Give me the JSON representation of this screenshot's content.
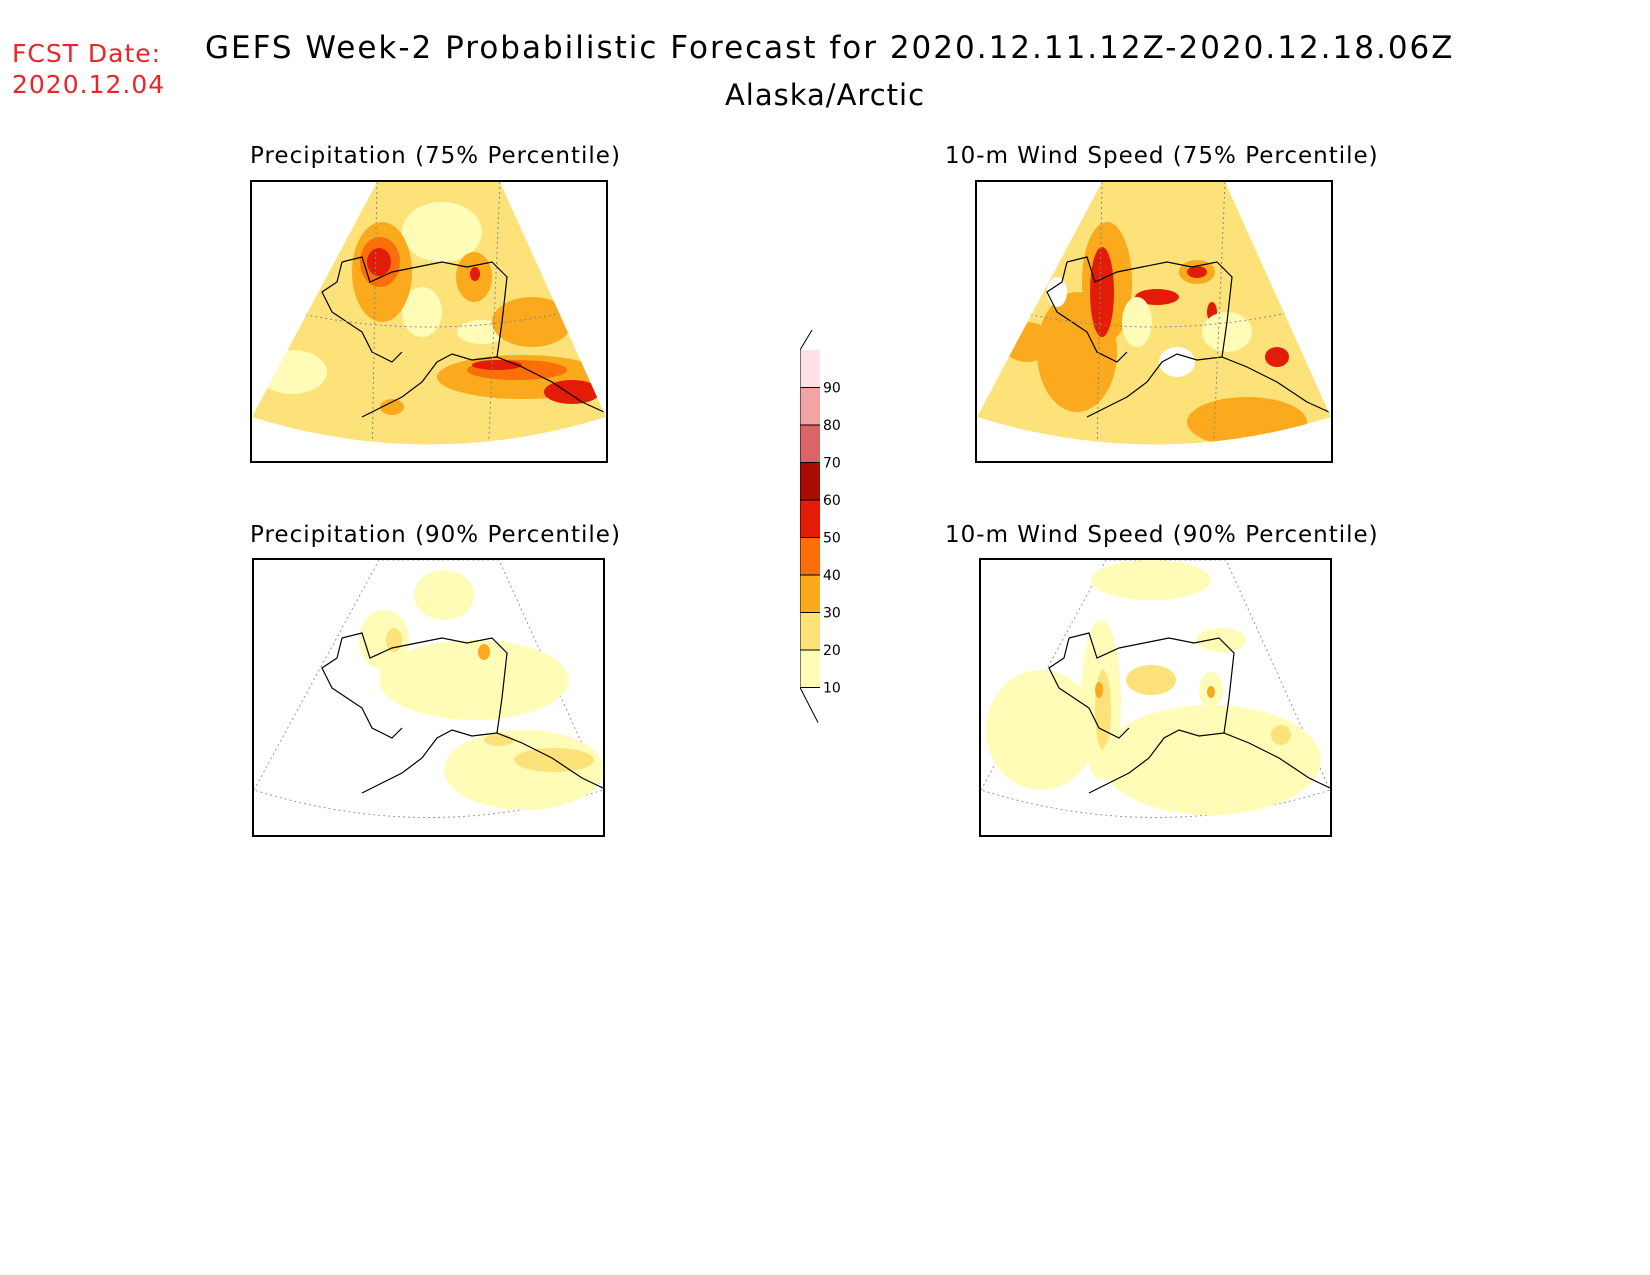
{
  "header": {
    "fcst_label": "FCST Date:",
    "fcst_date": "2020.12.04",
    "title": "GEFS Week-2 Probabilistic Forecast for 2020.12.11.12Z-2020.12.18.06Z",
    "region": "Alaska/Arctic",
    "fcst_color": "#e8262a"
  },
  "panels": [
    {
      "id": "precip75",
      "title": "Precipitation (75% Percentile)"
    },
    {
      "id": "wind75",
      "title": "10-m Wind Speed (75% Percentile)"
    },
    {
      "id": "precip90",
      "title": "Precipitation (90% Percentile)"
    },
    {
      "id": "wind90",
      "title": "10-m Wind Speed (90% Percentile)"
    }
  ],
  "colorbar": {
    "ticks": [
      "10",
      "20",
      "30",
      "40",
      "50",
      "60",
      "70",
      "80",
      "90"
    ],
    "colors": [
      "#fffcb8",
      "#fde27a",
      "#fba91d",
      "#fb6e08",
      "#e21c07",
      "#a80c03",
      "#dc6467",
      "#f2a3a4",
      "#fde1e5"
    ]
  }
}
